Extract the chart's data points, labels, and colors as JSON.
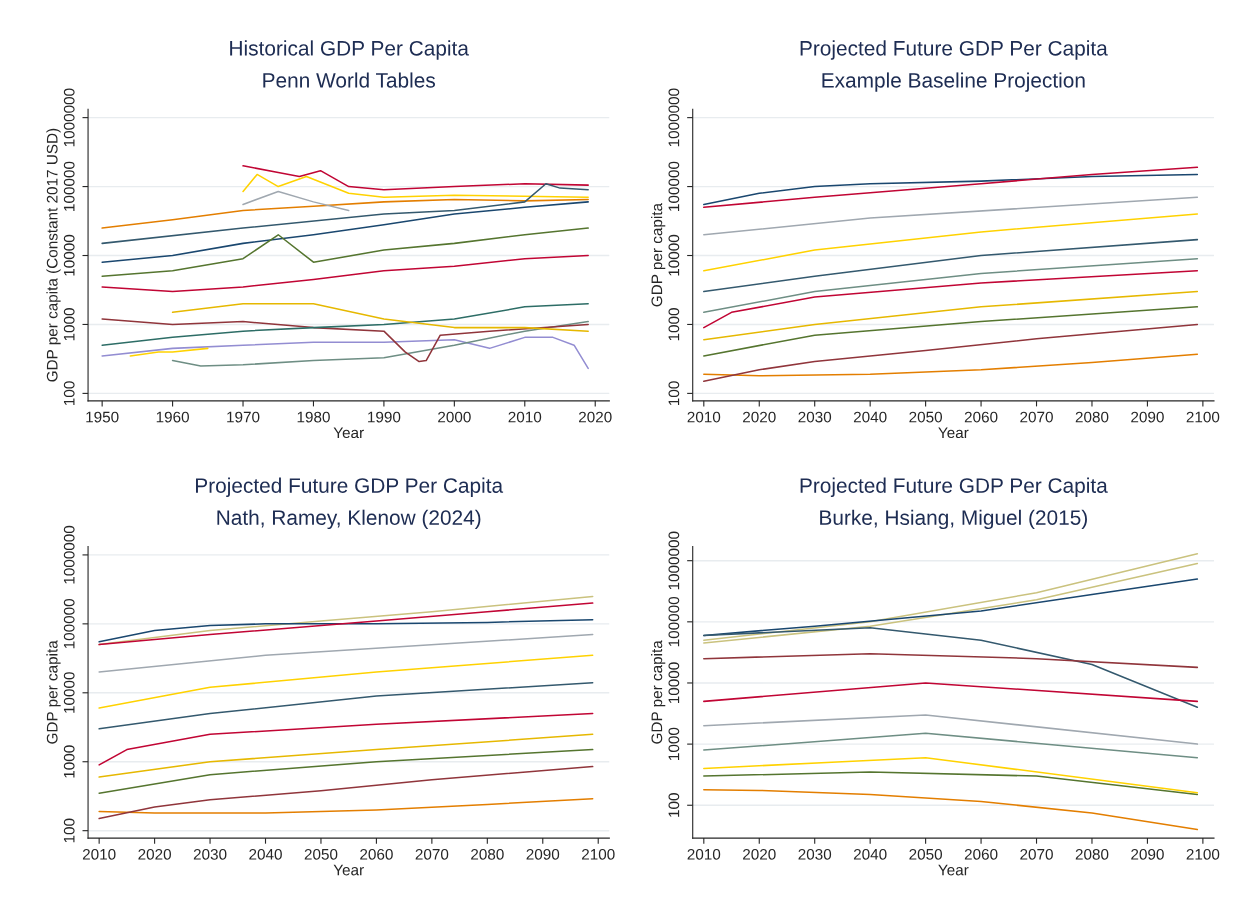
{
  "chart_data": [
    {
      "type": "line",
      "title": "Historical GDP Per Capita",
      "subtitle": "Penn World Tables",
      "xlabel": "Year",
      "ylabel": "GDP per capita (Constant 2017 USD)",
      "log": "y",
      "grid": "y",
      "xlim": [
        1948,
        2022
      ],
      "xticks": [
        1950,
        1960,
        1970,
        1980,
        1990,
        2000,
        2010,
        2020
      ],
      "ylim": [
        78,
        1320000
      ],
      "yticks": [
        100,
        1000,
        10000,
        100000,
        1000000
      ],
      "series": [
        {
          "color": "#e37e00",
          "x": [
            1950,
            1960,
            1970,
            1980,
            1990,
            2000,
            2010,
            2019
          ],
          "values": [
            25000,
            33000,
            45000,
            52000,
            60000,
            65000,
            62000,
            65000
          ]
        },
        {
          "color": "#c10534",
          "x": [
            1970,
            1975,
            1978,
            1981,
            1985,
            1990,
            2000,
            2010,
            2019
          ],
          "values": [
            200000,
            160000,
            140000,
            170000,
            100000,
            90000,
            100000,
            110000,
            105000
          ]
        },
        {
          "color": "#ffd200",
          "x": [
            1970,
            1972,
            1975,
            1979,
            1985,
            1990,
            2000,
            2019
          ],
          "values": [
            85000,
            150000,
            100000,
            140000,
            80000,
            70000,
            75000,
            70000
          ]
        },
        {
          "color": "#938dd2",
          "x": [
            1950,
            1960,
            1970,
            1980,
            1990,
            2000,
            2005,
            2010,
            2014,
            2017,
            2019
          ],
          "values": [
            350,
            450,
            500,
            550,
            550,
            600,
            450,
            650,
            650,
            500,
            230
          ]
        },
        {
          "color": "#6e8e84",
          "x": [
            1960,
            1964,
            1970,
            1980,
            1990,
            2000,
            2010,
            2019
          ],
          "values": [
            300,
            250,
            260,
            300,
            330,
            500,
            800,
            1100
          ]
        },
        {
          "color": "#90353b",
          "x": [
            1950,
            1960,
            1970,
            1980,
            1990,
            1993,
            1995,
            1996,
            1998,
            2005,
            2019
          ],
          "values": [
            1200,
            1000,
            1100,
            900,
            800,
            400,
            290,
            300,
            700,
            800,
            1000
          ]
        },
        {
          "color": "#1a476f",
          "x": [
            1950,
            1960,
            1970,
            1980,
            1990,
            2000,
            2010,
            2019
          ],
          "values": [
            8000,
            10000,
            15000,
            20000,
            28000,
            40000,
            50000,
            60000
          ]
        },
        {
          "color": "#c10534",
          "x": [
            1950,
            1960,
            1970,
            1980,
            1990,
            2000,
            2010,
            2019
          ],
          "values": [
            3500,
            3000,
            3500,
            4500,
            6000,
            7000,
            9000,
            10000
          ]
        },
        {
          "color": "#ffd200",
          "x": [
            1954,
            1958,
            1960,
            1965
          ],
          "values": [
            350,
            400,
            400,
            450
          ]
        },
        {
          "color": "#2d6d66",
          "x": [
            1950,
            1960,
            1970,
            1980,
            1990,
            2000,
            2010,
            2019
          ],
          "values": [
            500,
            650,
            800,
            900,
            1000,
            1200,
            1800,
            2000
          ]
        },
        {
          "color": "#55752f",
          "x": [
            1950,
            1960,
            1970,
            1975,
            1980,
            1990,
            2000,
            2010,
            2019
          ],
          "values": [
            5000,
            6000,
            9000,
            20000,
            8000,
            12000,
            15000,
            20000,
            25000
          ]
        },
        {
          "color": "#e6b800",
          "x": [
            1960,
            1970,
            1980,
            1990,
            2000,
            2010,
            2019
          ],
          "values": [
            1500,
            2000,
            2000,
            1200,
            900,
            900,
            800
          ]
        },
        {
          "color": "#a0a8b0",
          "x": [
            1970,
            1975,
            1980,
            1985
          ],
          "values": [
            55000,
            85000,
            60000,
            45000
          ]
        },
        {
          "color": "#34596e",
          "x": [
            1950,
            1970,
            1990,
            2000,
            2010,
            2013,
            2015,
            2019
          ],
          "values": [
            15000,
            25000,
            40000,
            45000,
            60000,
            110000,
            95000,
            90000
          ]
        }
      ]
    },
    {
      "type": "line",
      "title": "Projected Future GDP Per Capita",
      "subtitle": "Example Baseline Projection",
      "xlabel": "Year",
      "ylabel": "GDP per capita",
      "log": "y",
      "grid": "y",
      "xlim": [
        2008,
        2102
      ],
      "xticks": [
        2010,
        2020,
        2030,
        2040,
        2050,
        2060,
        2070,
        2080,
        2090,
        2100
      ],
      "ylim": [
        78,
        1320000
      ],
      "yticks": [
        100,
        1000,
        10000,
        100000,
        1000000
      ],
      "series": [
        {
          "color": "#1a476f",
          "x": [
            2010,
            2020,
            2030,
            2040,
            2060,
            2080,
            2099
          ],
          "values": [
            55000,
            80000,
            100000,
            110000,
            120000,
            140000,
            150000
          ]
        },
        {
          "color": "#c10534",
          "x": [
            2010,
            2030,
            2060,
            2080,
            2099
          ],
          "values": [
            50000,
            70000,
            110000,
            150000,
            190000
          ]
        },
        {
          "color": "#e37e00",
          "x": [
            2010,
            2020,
            2040,
            2060,
            2080,
            2099
          ],
          "values": [
            190,
            180,
            190,
            220,
            280,
            370
          ]
        },
        {
          "color": "#90353b",
          "x": [
            2010,
            2020,
            2030,
            2050,
            2070,
            2099
          ],
          "values": [
            150,
            220,
            290,
            420,
            620,
            1000
          ]
        },
        {
          "color": "#ffd200",
          "x": [
            2010,
            2030,
            2060,
            2099
          ],
          "values": [
            6000,
            12000,
            22000,
            40000
          ]
        },
        {
          "color": "#34596e",
          "x": [
            2010,
            2030,
            2060,
            2099
          ],
          "values": [
            3000,
            5000,
            10000,
            17000
          ]
        },
        {
          "color": "#55752f",
          "x": [
            2010,
            2030,
            2060,
            2099
          ],
          "values": [
            350,
            700,
            1100,
            1800
          ]
        },
        {
          "color": "#c10534",
          "x": [
            2010,
            2015,
            2030,
            2060,
            2099
          ],
          "values": [
            900,
            1500,
            2500,
            4000,
            6000
          ]
        },
        {
          "color": "#a0a8b0",
          "x": [
            2010,
            2040,
            2099
          ],
          "values": [
            20000,
            35000,
            70000
          ]
        },
        {
          "color": "#e6b800",
          "x": [
            2010,
            2030,
            2060,
            2099
          ],
          "values": [
            600,
            1000,
            1800,
            3000
          ]
        },
        {
          "color": "#6e8e84",
          "x": [
            2010,
            2030,
            2060,
            2099
          ],
          "values": [
            1500,
            3000,
            5500,
            9000
          ]
        }
      ]
    },
    {
      "type": "line",
      "title": "Projected Future GDP Per Capita",
      "subtitle": "Nath, Ramey, Klenow (2024)",
      "xlabel": "Year",
      "ylabel": "GDP per capita",
      "log": "y",
      "grid": "y",
      "xlim": [
        2008,
        2102
      ],
      "xticks": [
        2010,
        2020,
        2030,
        2040,
        2050,
        2060,
        2070,
        2080,
        2090,
        2100
      ],
      "ylim": [
        78,
        1320000
      ],
      "yticks": [
        100,
        1000,
        10000,
        100000,
        1000000
      ],
      "series": [
        {
          "color": "#cac27e",
          "x": [
            2010,
            2030,
            2050,
            2070,
            2099
          ],
          "values": [
            50000,
            80000,
            110000,
            150000,
            250000
          ]
        },
        {
          "color": "#1a476f",
          "x": [
            2010,
            2020,
            2030,
            2040,
            2060,
            2080,
            2099
          ],
          "values": [
            55000,
            80000,
            95000,
            100000,
            100000,
            105000,
            115000
          ]
        },
        {
          "color": "#c10534",
          "x": [
            2010,
            2030,
            2060,
            2080,
            2099
          ],
          "values": [
            50000,
            70000,
            110000,
            150000,
            200000
          ]
        },
        {
          "color": "#e37e00",
          "x": [
            2010,
            2020,
            2040,
            2060,
            2080,
            2099
          ],
          "values": [
            190,
            180,
            180,
            200,
            240,
            290
          ]
        },
        {
          "color": "#90353b",
          "x": [
            2010,
            2020,
            2030,
            2050,
            2070,
            2099
          ],
          "values": [
            150,
            220,
            280,
            380,
            550,
            850
          ]
        },
        {
          "color": "#ffd200",
          "x": [
            2010,
            2030,
            2060,
            2099
          ],
          "values": [
            6000,
            12000,
            20000,
            35000
          ]
        },
        {
          "color": "#34596e",
          "x": [
            2010,
            2030,
            2060,
            2099
          ],
          "values": [
            3000,
            5000,
            9000,
            14000
          ]
        },
        {
          "color": "#55752f",
          "x": [
            2010,
            2030,
            2060,
            2099
          ],
          "values": [
            350,
            650,
            1000,
            1500
          ]
        },
        {
          "color": "#c10534",
          "x": [
            2010,
            2015,
            2030,
            2060,
            2099
          ],
          "values": [
            900,
            1500,
            2500,
            3500,
            5000
          ]
        },
        {
          "color": "#a0a8b0",
          "x": [
            2010,
            2040,
            2099
          ],
          "values": [
            20000,
            35000,
            70000
          ]
        },
        {
          "color": "#e6b800",
          "x": [
            2010,
            2030,
            2060,
            2099
          ],
          "values": [
            600,
            1000,
            1500,
            2500
          ]
        }
      ]
    },
    {
      "type": "line",
      "title": "Projected Future GDP Per Capita",
      "subtitle": "Burke, Hsiang, Miguel (2015)",
      "xlabel": "Year",
      "ylabel": "GDP per capita",
      "log": "y",
      "grid": "y",
      "xlim": [
        2008,
        2102
      ],
      "xticks": [
        2010,
        2020,
        2030,
        2040,
        2050,
        2060,
        2070,
        2080,
        2090,
        2100
      ],
      "ylim": [
        29,
        1700000
      ],
      "yticks": [
        100,
        1000,
        10000,
        100000,
        1000000
      ],
      "series": [
        {
          "color": "#cac27e",
          "x": [
            2010,
            2040,
            2070,
            2099
          ],
          "values": [
            50000,
            100000,
            300000,
            1300000
          ]
        },
        {
          "color": "#cac27e",
          "x": [
            2010,
            2040,
            2070,
            2099
          ],
          "values": [
            45000,
            85000,
            230000,
            900000
          ]
        },
        {
          "color": "#1a476f",
          "x": [
            2010,
            2030,
            2060,
            2080,
            2099
          ],
          "values": [
            60000,
            85000,
            150000,
            280000,
            500000
          ]
        },
        {
          "color": "#e37e00",
          "x": [
            2010,
            2020,
            2040,
            2060,
            2080,
            2099
          ],
          "values": [
            180,
            175,
            150,
            115,
            75,
            40
          ]
        },
        {
          "color": "#34596e",
          "x": [
            2010,
            2040,
            2060,
            2080,
            2099
          ],
          "values": [
            60000,
            80000,
            50000,
            20000,
            4000
          ]
        },
        {
          "color": "#55752f",
          "x": [
            2010,
            2040,
            2070,
            2099
          ],
          "values": [
            300,
            350,
            300,
            150
          ]
        },
        {
          "color": "#c10534",
          "x": [
            2010,
            2050,
            2099
          ],
          "values": [
            5000,
            10000,
            5000
          ]
        },
        {
          "color": "#ffd200",
          "x": [
            2010,
            2050,
            2099
          ],
          "values": [
            400,
            600,
            160
          ]
        },
        {
          "color": "#a0a8b0",
          "x": [
            2010,
            2050,
            2099
          ],
          "values": [
            2000,
            3000,
            1000
          ]
        },
        {
          "color": "#90353b",
          "x": [
            2010,
            2040,
            2070,
            2099
          ],
          "values": [
            25000,
            30000,
            25000,
            18000
          ]
        },
        {
          "color": "#6e8e84",
          "x": [
            2010,
            2050,
            2099
          ],
          "values": [
            800,
            1500,
            600
          ]
        }
      ]
    }
  ]
}
